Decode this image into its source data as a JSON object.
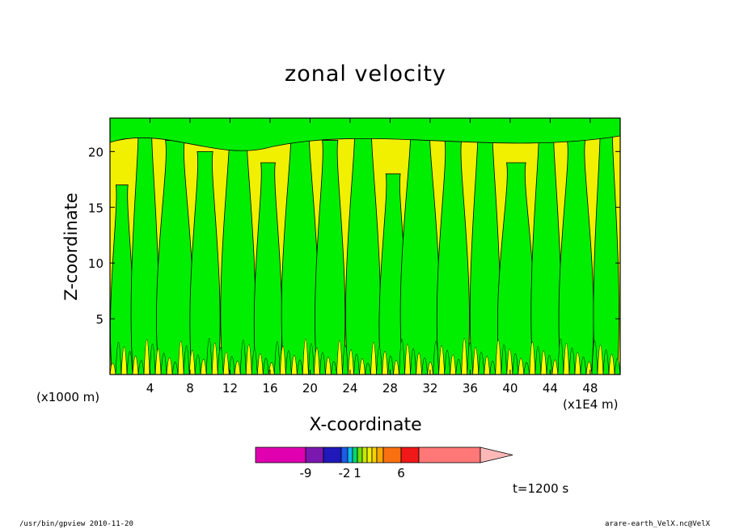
{
  "chart_data": {
    "type": "heatmap",
    "title": "zonal velocity",
    "xlabel": "X-coordinate",
    "ylabel": "Z-coordinate",
    "x_unit_left": "(x1000 m)",
    "x_unit_right": "(x1E4 m)",
    "xlim": [
      0,
      51
    ],
    "ylim": [
      0,
      23
    ],
    "x_ticks": [
      "4",
      "8",
      "12",
      "16",
      "20",
      "24",
      "28",
      "32",
      "36",
      "40",
      "44",
      "48"
    ],
    "y_ticks": [
      "5",
      "10",
      "15",
      "20"
    ],
    "dominant_levels": [
      {
        "range": "0 to 1",
        "color": "#ffff00"
      },
      {
        "range": "-1 to 0",
        "color": "#00ee00"
      }
    ],
    "colorbar": {
      "labels": [
        "-9",
        "-2",
        "1",
        "6"
      ],
      "colors": [
        "#e000b0",
        "#7a18b0",
        "#2018b8",
        "#1a5ce8",
        "#10b8f0",
        "#00d870",
        "#70e000",
        "#c8e800",
        "#f0f000",
        "#f8d000",
        "#f8a800",
        "#f87010",
        "#f01818",
        "#ff7878",
        "#ffb8b8"
      ]
    },
    "time_label": "t=1200 s",
    "grid": false
  },
  "footer": {
    "left": "/usr/bin/gpview   2010-11-20",
    "right": "arare-earth_VelX.nc@VelX"
  }
}
